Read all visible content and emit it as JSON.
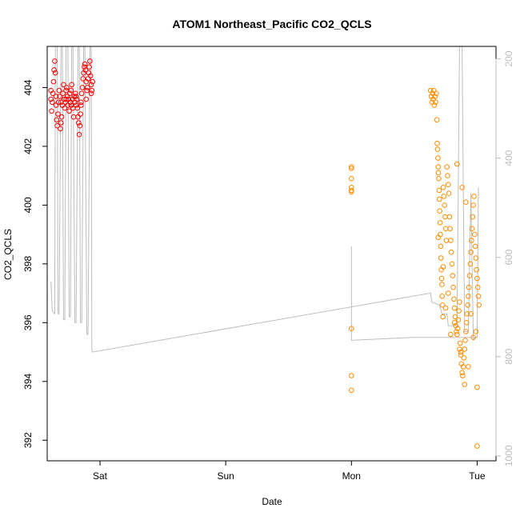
{
  "chart_data": {
    "type": "scatter",
    "title": "ATOM1 Northeast_Pacific CO2_QCLS",
    "xlabel": "Date",
    "ylabel": "CO2_QCLS",
    "x_axis": {
      "unit": "days",
      "range": [
        -0.42,
        3.15
      ],
      "ticks": [
        {
          "value": 0,
          "label": "Sat"
        },
        {
          "value": 1,
          "label": "Sun"
        },
        {
          "value": 2,
          "label": "Mon"
        },
        {
          "value": 3,
          "label": "Tue"
        }
      ]
    },
    "y_axis": {
      "range": [
        391.3,
        405.4
      ],
      "ticks": [
        392,
        394,
        396,
        398,
        400,
        402,
        404
      ]
    },
    "y2_axis": {
      "range": [
        1010,
        175
      ],
      "ticks": [
        200,
        400,
        600,
        800,
        1000
      ]
    },
    "colors": {
      "series_red": "#ff0000",
      "series_orange": "#ff8c00",
      "secondary_line": "#bdbdbd",
      "secondary_axis": "#bdbdbd",
      "frame": "#000000"
    },
    "series": [
      {
        "color": "#ff0000",
        "marker": "open-circle",
        "points": [
          [
            -0.39,
            403.6
          ],
          [
            -0.385,
            403.2
          ],
          [
            -0.38,
            403.5
          ],
          [
            -0.375,
            403.8
          ],
          [
            -0.37,
            404.2
          ],
          [
            -0.365,
            404.6
          ],
          [
            -0.36,
            404.9
          ],
          [
            -0.355,
            404.5
          ],
          [
            -0.35,
            403.4
          ],
          [
            -0.345,
            402.9
          ],
          [
            -0.34,
            402.7
          ],
          [
            -0.335,
            403.1
          ],
          [
            -0.33,
            403.5
          ],
          [
            -0.325,
            403.9
          ],
          [
            -0.32,
            403.7
          ],
          [
            -0.315,
            402.6
          ],
          [
            -0.31,
            402.8
          ],
          [
            -0.305,
            403.0
          ],
          [
            -0.3,
            403.4
          ],
          [
            -0.295,
            403.8
          ],
          [
            -0.29,
            404.1
          ],
          [
            -0.285,
            403.6
          ],
          [
            -0.28,
            403.3
          ],
          [
            -0.275,
            403.5
          ],
          [
            -0.27,
            403.9
          ],
          [
            -0.265,
            404.0
          ],
          [
            -0.26,
            403.7
          ],
          [
            -0.255,
            403.4
          ],
          [
            -0.25,
            403.6
          ],
          [
            -0.245,
            403.2
          ],
          [
            -0.24,
            403.8
          ],
          [
            -0.235,
            403.5
          ],
          [
            -0.23,
            403.9
          ],
          [
            -0.225,
            404.1
          ],
          [
            -0.22,
            403.6
          ],
          [
            -0.215,
            403.3
          ],
          [
            -0.21,
            403.0
          ],
          [
            -0.205,
            403.7
          ],
          [
            -0.2,
            403.5
          ],
          [
            -0.195,
            403.8
          ],
          [
            -0.19,
            403.4
          ],
          [
            -0.185,
            403.6
          ],
          [
            -0.18,
            403.3
          ],
          [
            -0.175,
            403.0
          ],
          [
            -0.17,
            402.8
          ],
          [
            -0.165,
            402.4
          ],
          [
            -0.16,
            402.7
          ],
          [
            -0.155,
            403.1
          ],
          [
            -0.15,
            403.5
          ],
          [
            -0.145,
            403.8
          ],
          [
            -0.14,
            404.0
          ],
          [
            -0.135,
            404.3
          ],
          [
            -0.13,
            404.5
          ],
          [
            -0.125,
            404.7
          ],
          [
            -0.12,
            404.8
          ],
          [
            -0.115,
            404.6
          ],
          [
            -0.11,
            404.2
          ],
          [
            -0.105,
            403.9
          ],
          [
            -0.1,
            404.0
          ],
          [
            -0.095,
            404.3
          ],
          [
            -0.09,
            404.5
          ],
          [
            -0.085,
            404.7
          ],
          [
            -0.08,
            404.9
          ],
          [
            -0.075,
            404.4
          ],
          [
            -0.07,
            404.1
          ],
          [
            -0.065,
            403.9
          ],
          [
            -0.06,
            404.2
          ],
          [
            -0.39,
            403.9
          ],
          [
            -0.35,
            403.7
          ],
          [
            -0.31,
            403.5
          ],
          [
            -0.27,
            403.6
          ],
          [
            -0.23,
            403.4
          ],
          [
            -0.19,
            403.7
          ],
          [
            -0.15,
            403.4
          ],
          [
            -0.11,
            403.6
          ],
          [
            -0.07,
            403.8
          ]
        ]
      },
      {
        "color": "#ff8c00",
        "marker": "open-circle",
        "points": [
          [
            2.0,
            401.3
          ],
          [
            2.0,
            401.25
          ],
          [
            2.0,
            400.9
          ],
          [
            2.0,
            400.6
          ],
          [
            2.0,
            400.45
          ],
          [
            2.0,
            400.5
          ],
          [
            2.0,
            395.8
          ],
          [
            2.0,
            394.2
          ],
          [
            2.0,
            393.7
          ],
          [
            2.63,
            403.9
          ],
          [
            2.635,
            403.7
          ],
          [
            2.64,
            403.5
          ],
          [
            2.645,
            403.8
          ],
          [
            2.65,
            403.6
          ],
          [
            2.655,
            403.9
          ],
          [
            2.66,
            403.4
          ],
          [
            2.665,
            403.7
          ],
          [
            2.67,
            403.5
          ],
          [
            2.675,
            403.8
          ],
          [
            2.68,
            402.9
          ],
          [
            2.682,
            402.1
          ],
          [
            2.685,
            401.9
          ],
          [
            2.688,
            401.6
          ],
          [
            2.69,
            401.3
          ],
          [
            2.692,
            401.1
          ],
          [
            2.695,
            400.9
          ],
          [
            2.698,
            400.5
          ],
          [
            2.7,
            400.2
          ],
          [
            2.702,
            399.8
          ],
          [
            2.705,
            399.4
          ],
          [
            2.708,
            399.0
          ],
          [
            2.71,
            398.6
          ],
          [
            2.712,
            398.2
          ],
          [
            2.715,
            397.8
          ],
          [
            2.718,
            397.5
          ],
          [
            2.72,
            397.3
          ],
          [
            2.722,
            396.9
          ],
          [
            2.725,
            396.6
          ],
          [
            2.728,
            396.2
          ],
          [
            2.73,
            400.6
          ],
          [
            2.735,
            400.3
          ],
          [
            2.74,
            400.0
          ],
          [
            2.745,
            399.6
          ],
          [
            2.75,
            399.2
          ],
          [
            2.755,
            398.8
          ],
          [
            2.76,
            401.3
          ],
          [
            2.765,
            401.0
          ],
          [
            2.77,
            400.7
          ],
          [
            2.775,
            400.4
          ],
          [
            2.78,
            399.6
          ],
          [
            2.785,
            399.2
          ],
          [
            2.79,
            398.8
          ],
          [
            2.795,
            398.4
          ],
          [
            2.8,
            398.0
          ],
          [
            2.805,
            397.6
          ],
          [
            2.81,
            397.2
          ],
          [
            2.815,
            396.8
          ],
          [
            2.82,
            396.5
          ],
          [
            2.825,
            396.2
          ],
          [
            2.83,
            395.9
          ],
          [
            2.835,
            395.7
          ],
          [
            2.84,
            395.6
          ],
          [
            2.845,
            395.8
          ],
          [
            2.85,
            396.1
          ],
          [
            2.855,
            396.4
          ],
          [
            2.86,
            396.7
          ],
          [
            2.865,
            395.3
          ],
          [
            2.87,
            395.0
          ],
          [
            2.875,
            394.6
          ],
          [
            2.88,
            394.3
          ],
          [
            2.885,
            394.2
          ],
          [
            2.89,
            394.5
          ],
          [
            2.895,
            394.8
          ],
          [
            2.9,
            395.1
          ],
          [
            2.905,
            395.4
          ],
          [
            2.91,
            395.7
          ],
          [
            2.915,
            396.0
          ],
          [
            2.92,
            396.3
          ],
          [
            2.925,
            396.6
          ],
          [
            2.93,
            396.9
          ],
          [
            2.935,
            397.2
          ],
          [
            2.94,
            397.6
          ],
          [
            2.945,
            398.0
          ],
          [
            2.95,
            398.4
          ],
          [
            2.955,
            398.8
          ],
          [
            2.96,
            399.2
          ],
          [
            2.965,
            399.6
          ],
          [
            2.97,
            400.0
          ],
          [
            2.975,
            400.3
          ],
          [
            2.98,
            399.0
          ],
          [
            2.985,
            398.6
          ],
          [
            2.99,
            398.2
          ],
          [
            2.995,
            397.8
          ],
          [
            3.0,
            397.5
          ],
          [
            3.005,
            397.2
          ],
          [
            3.01,
            396.9
          ],
          [
            3.015,
            396.6
          ],
          [
            3.0,
            393.8
          ],
          [
            3.0,
            391.8
          ],
          [
            2.84,
            401.4
          ],
          [
            2.88,
            400.6
          ],
          [
            2.91,
            400.1
          ],
          [
            2.75,
            396.5
          ],
          [
            2.79,
            395.6
          ],
          [
            2.86,
            395.1
          ],
          [
            2.93,
            394.5
          ],
          [
            2.97,
            395.5
          ],
          [
            2.69,
            398.9
          ],
          [
            2.73,
            397.9
          ],
          [
            2.77,
            397.0
          ],
          [
            2.82,
            396.0
          ],
          [
            2.87,
            394.9
          ],
          [
            2.9,
            393.9
          ],
          [
            2.95,
            396.3
          ],
          [
            2.99,
            395.7
          ]
        ]
      }
    ],
    "secondary_line": [
      [
        -0.39,
        397.4
      ],
      [
        -0.38,
        396.4
      ],
      [
        -0.36,
        396.3
      ],
      [
        -0.355,
        405.4
      ],
      [
        -0.34,
        405.4
      ],
      [
        -0.335,
        396.3
      ],
      [
        -0.325,
        396.3
      ],
      [
        -0.31,
        405.4
      ],
      [
        -0.3,
        405.4
      ],
      [
        -0.29,
        396.1
      ],
      [
        -0.28,
        396.1
      ],
      [
        -0.27,
        405.4
      ],
      [
        -0.255,
        405.4
      ],
      [
        -0.245,
        396.2
      ],
      [
        -0.235,
        396.2
      ],
      [
        -0.225,
        405.4
      ],
      [
        -0.215,
        405.4
      ],
      [
        -0.2,
        396.0
      ],
      [
        -0.19,
        396.0
      ],
      [
        -0.175,
        405.4
      ],
      [
        -0.165,
        405.4
      ],
      [
        -0.155,
        396.0
      ],
      [
        -0.145,
        396.0
      ],
      [
        -0.13,
        405.4
      ],
      [
        -0.12,
        405.4
      ],
      [
        -0.105,
        395.6
      ],
      [
        -0.095,
        395.6
      ],
      [
        -0.08,
        405.4
      ],
      [
        -0.07,
        405.4
      ],
      [
        -0.065,
        395.1
      ],
      [
        -0.06,
        395.0
      ],
      [
        2.62,
        397.0
      ],
      [
        2.63,
        397.0
      ],
      [
        2.64,
        396.7
      ],
      [
        2.7,
        396.6
      ],
      [
        2.72,
        396.3
      ],
      [
        2.76,
        396.3
      ],
      [
        2.77,
        395.9
      ],
      [
        2.84,
        395.9
      ],
      [
        2.86,
        405.4
      ],
      [
        2.88,
        405.4
      ],
      [
        2.9,
        395.7
      ],
      [
        2.93,
        395.7
      ],
      [
        2.95,
        400.4
      ],
      [
        2.97,
        395.4
      ],
      [
        2.98,
        395.5
      ],
      [
        3.0,
        395.5
      ],
      [
        3.01,
        400.6
      ]
    ],
    "secondary_line_segment2": [
      [
        2.0,
        398.6
      ],
      [
        2.0,
        395.4
      ],
      [
        2.5,
        395.5
      ],
      [
        2.9,
        395.5
      ],
      [
        3.0,
        395.5
      ]
    ]
  }
}
